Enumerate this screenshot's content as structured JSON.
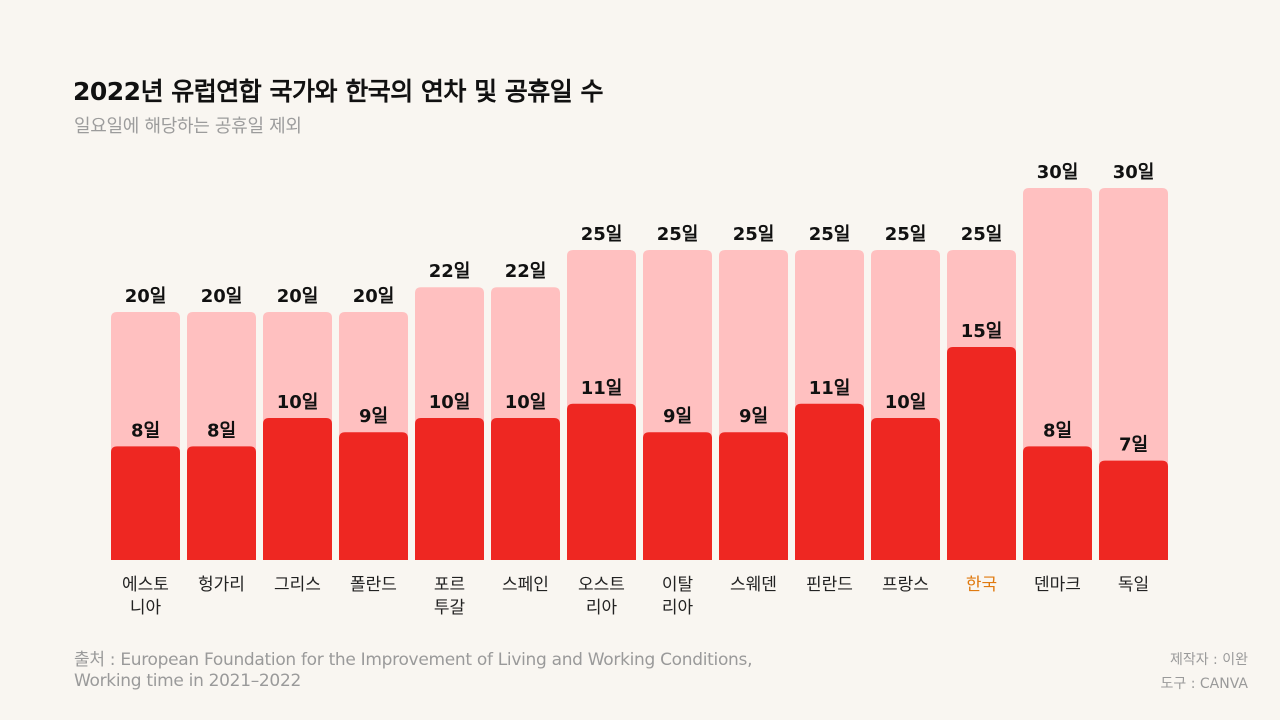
{
  "header": {
    "title": "2022년 유럽연합 국가와 한국의 연차 및 공휴일 수",
    "subtitle": "일요일에 해당하는 공휴일 제외"
  },
  "footer": {
    "source_line1": "출처 : European Foundation for the Improvement of Living and Working Conditions,",
    "source_line2": "Working time in 2021–2022",
    "maker": "제작자 : 이완",
    "tool": "도구 : CANVA"
  },
  "colors": {
    "total_bar": "#ffc0c0",
    "holiday_bar": "#ee2722",
    "highlight_label": "#e07a10",
    "label_text": "#111111",
    "background": "#f9f6f1"
  },
  "chart_data": {
    "type": "bar",
    "title": "2022년 유럽연합 국가와 한국의 연차 및 공휴일 수",
    "subtitle": "일요일에 해당하는 공휴일 제외",
    "xlabel": "",
    "ylabel": "",
    "unit_suffix": "일",
    "grid": false,
    "legend": "none",
    "highlight_category": "한국",
    "categories": [
      "에스토니아",
      "헝가리",
      "그리스",
      "폴란드",
      "포르투갈",
      "스페인",
      "오스트리아",
      "이탈리아",
      "스웨덴",
      "핀란드",
      "프랑스",
      "한국",
      "덴마크",
      "독일"
    ],
    "category_labels": [
      [
        "에스토",
        "니아"
      ],
      [
        "헝가리"
      ],
      [
        "그리스"
      ],
      [
        "폴란드"
      ],
      [
        "포르",
        "투갈"
      ],
      [
        "스페인"
      ],
      [
        "오스트",
        "리아"
      ],
      [
        "이탈",
        "리아"
      ],
      [
        "스웨덴"
      ],
      [
        "핀란드"
      ],
      [
        "프랑스"
      ],
      [
        "한국"
      ],
      [
        "덴마크"
      ],
      [
        "독일"
      ]
    ],
    "series": [
      {
        "name": "연차",
        "values": [
          20,
          20,
          20,
          20,
          22,
          22,
          25,
          25,
          25,
          25,
          25,
          25,
          30,
          30
        ]
      },
      {
        "name": "공휴일",
        "values": [
          8,
          8,
          10,
          9,
          10,
          10,
          11,
          9,
          9,
          11,
          10,
          15,
          8,
          7
        ]
      }
    ],
    "ylim": [
      0,
      30
    ]
  }
}
